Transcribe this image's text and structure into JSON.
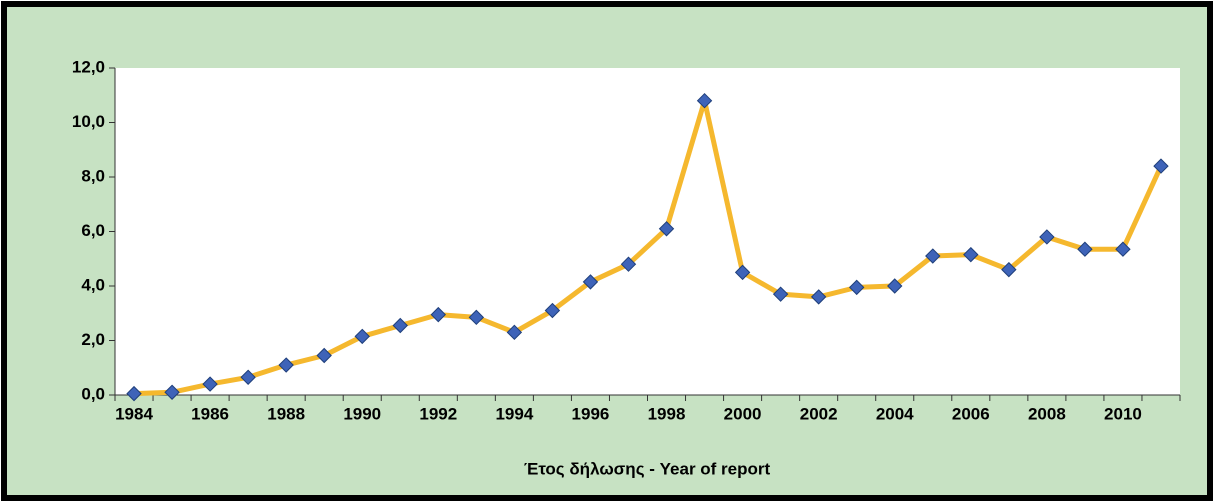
{
  "chart_data": {
    "type": "line",
    "x_label": "Έτος δήλωσης - Year of report",
    "categories": [
      "1984",
      null,
      "1986",
      null,
      "1988",
      null,
      "1990",
      null,
      "1992",
      null,
      "1994",
      null,
      "1996",
      null,
      "1998",
      null,
      "2000",
      null,
      "2002",
      null,
      "2004",
      null,
      "2006",
      null,
      "2008",
      null,
      "2010",
      null
    ],
    "series": [
      {
        "name": null,
        "color": "#f5b82e",
        "marker_color": "#3e63b8",
        "values": [
          0.05,
          0.1,
          0.4,
          0.65,
          1.1,
          1.45,
          2.15,
          2.55,
          2.95,
          2.85,
          2.3,
          3.1,
          4.15,
          4.8,
          6.1,
          10.8,
          4.5,
          3.7,
          3.6,
          3.95,
          4.0,
          5.1,
          5.15,
          4.6,
          5.8,
          5.35,
          5.35,
          8.4
        ]
      }
    ],
    "ylim": [
      0,
      12
    ],
    "yticks": [
      {
        "value": 0,
        "label": "0,0"
      },
      {
        "value": 2,
        "label": "2,0"
      },
      {
        "value": 4,
        "label": "4,0"
      },
      {
        "value": 6,
        "label": "6,0"
      },
      {
        "value": 8,
        "label": "8,0"
      },
      {
        "value": 10,
        "label": "10,0"
      },
      {
        "value": 12,
        "label": "12,0"
      }
    ],
    "grid": false
  }
}
